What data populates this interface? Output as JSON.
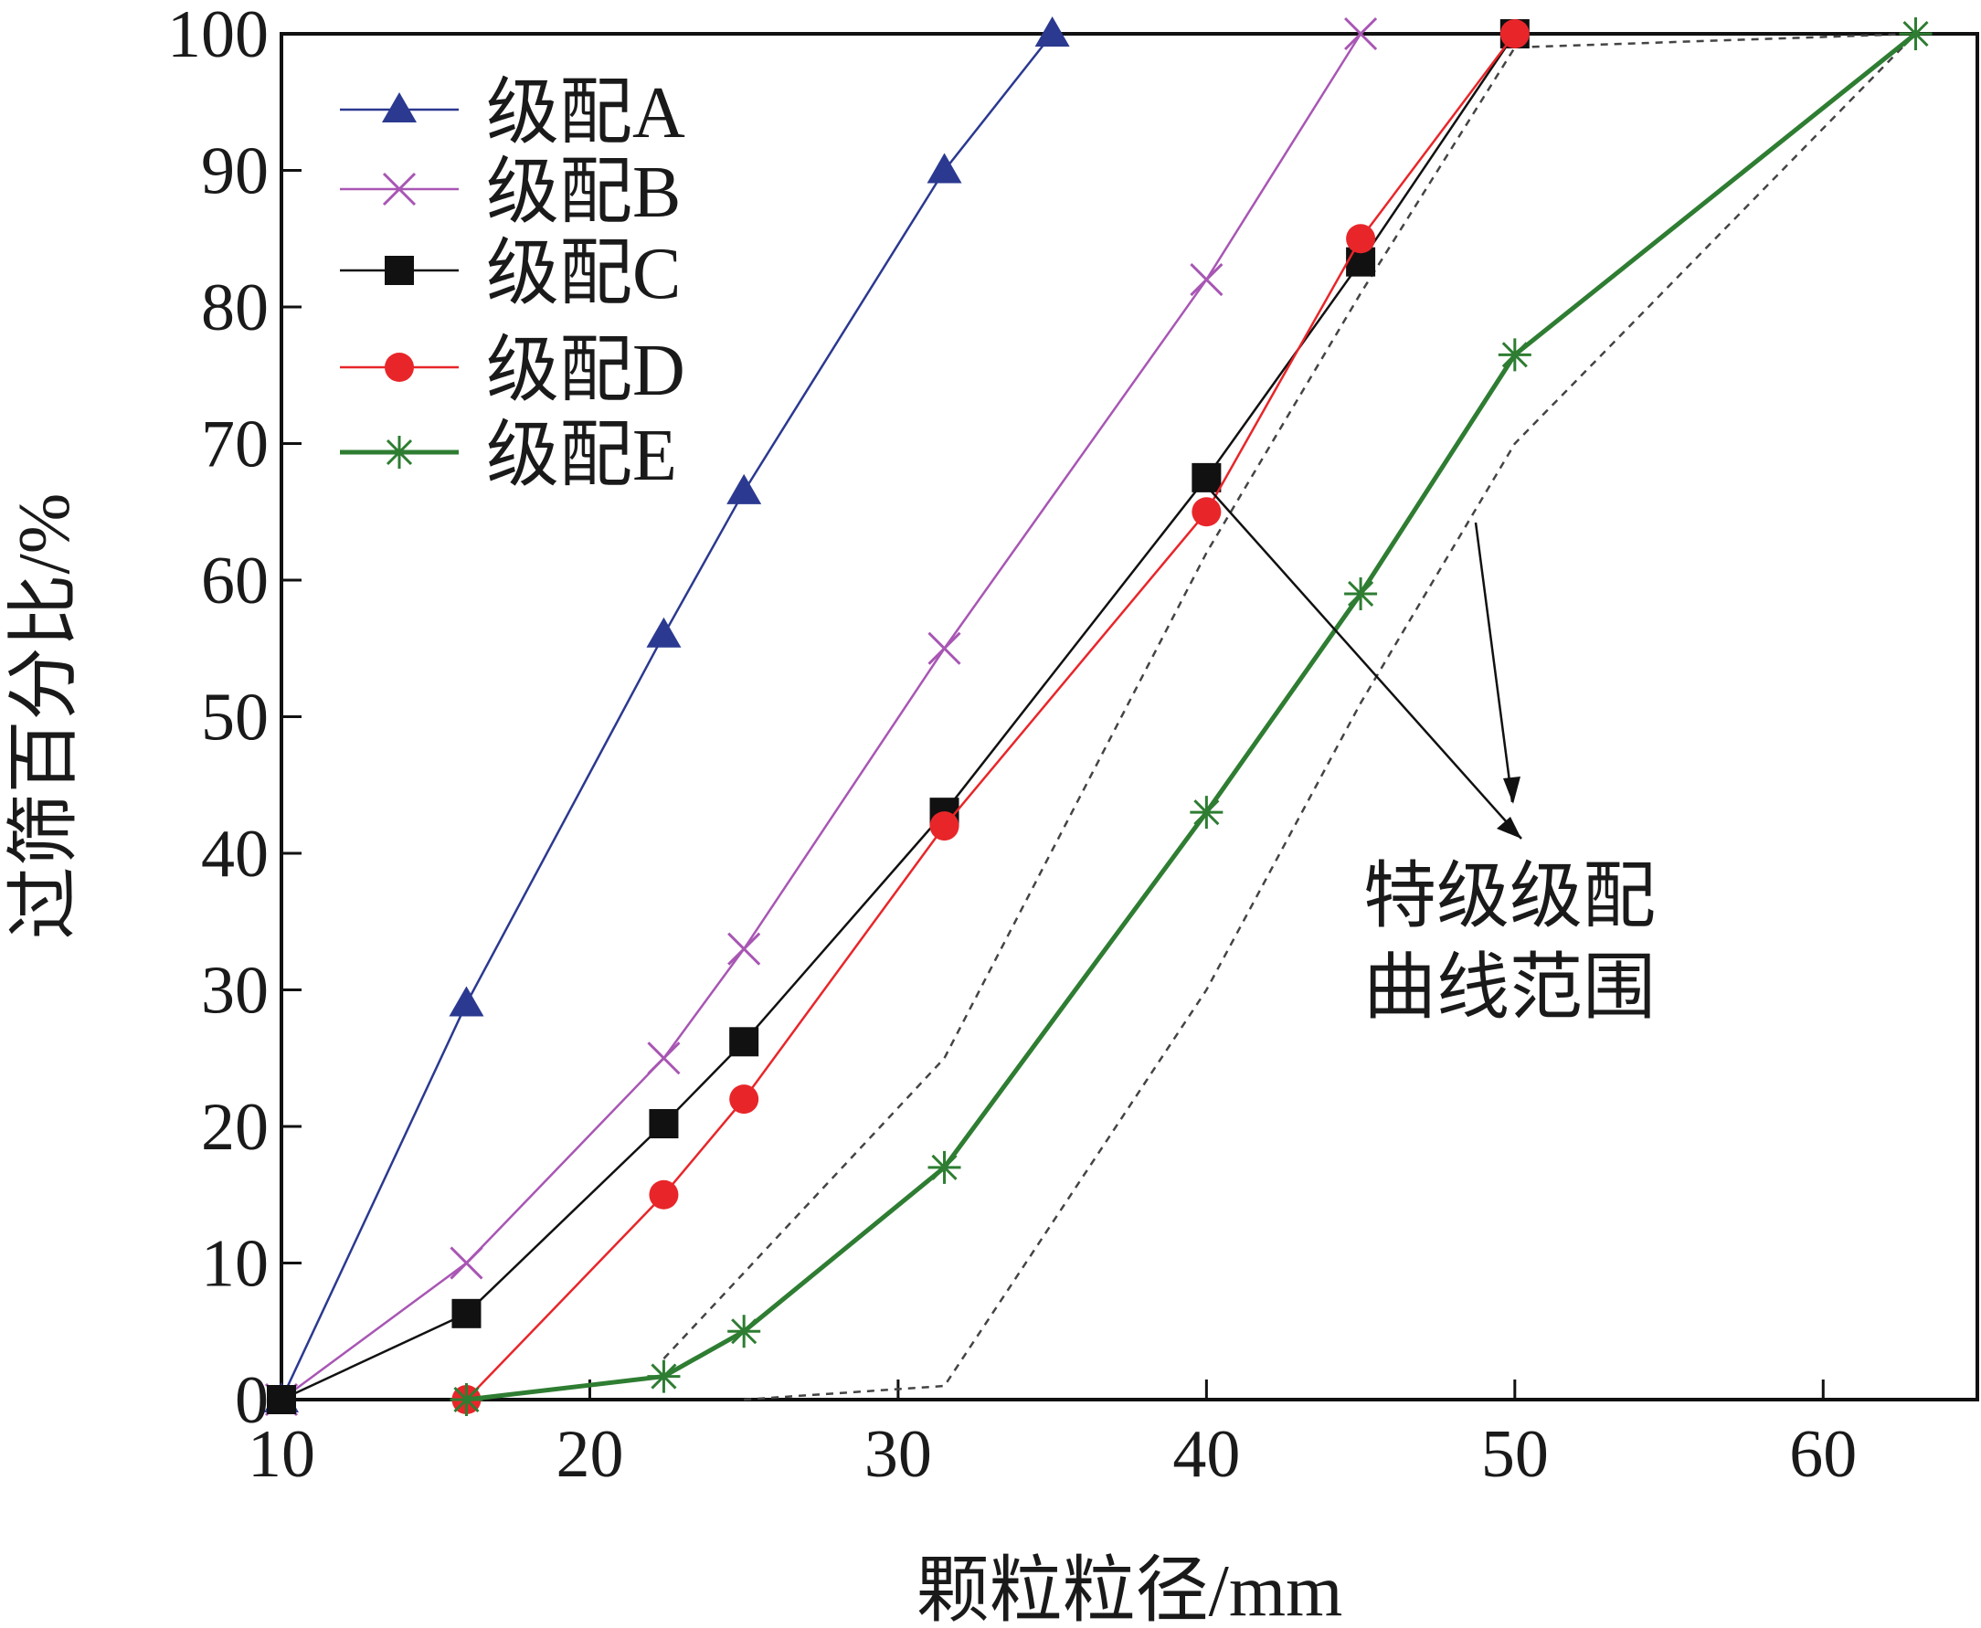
{
  "chart_data": {
    "type": "line",
    "xlabel": "颗粒粒径/mm",
    "ylabel": "过筛百分比/%",
    "xlim": [
      10,
      65
    ],
    "ylim": [
      0,
      100
    ],
    "xticks": [
      10,
      20,
      30,
      40,
      50,
      60
    ],
    "yticks": [
      0,
      10,
      20,
      30,
      40,
      50,
      60,
      70,
      80,
      90,
      100
    ],
    "grid": false,
    "legend_position": "top-left",
    "series": [
      {
        "name": "级配A",
        "color": "#2b3990",
        "marker": "triangle",
        "x": [
          10,
          16,
          22.4,
          25,
          31.5,
          35
        ],
        "y": [
          0,
          29,
          56,
          66.5,
          90,
          100
        ]
      },
      {
        "name": "级配B",
        "color": "#a856b4",
        "marker": "cross",
        "x": [
          10,
          16,
          22.4,
          25,
          31.5,
          40,
          45
        ],
        "y": [
          0,
          10,
          25,
          33,
          55,
          82,
          100
        ]
      },
      {
        "name": "级配C",
        "color": "#111111",
        "marker": "square",
        "x": [
          10,
          16,
          22.4,
          25,
          31.5,
          40,
          45,
          50
        ],
        "y": [
          0,
          6.3,
          20.2,
          26.2,
          43,
          67.5,
          83.3,
          100
        ]
      },
      {
        "name": "级配D",
        "color": "#e8262a",
        "marker": "circle",
        "x": [
          16,
          22.4,
          25,
          31.5,
          40,
          45,
          50
        ],
        "y": [
          0,
          15,
          22,
          42,
          65,
          85,
          100
        ]
      },
      {
        "name": "级配E",
        "color": "#2e7d32",
        "marker": "asterisk",
        "x": [
          16,
          22.4,
          25,
          31.5,
          40,
          45,
          50,
          63
        ],
        "y": [
          0,
          1.7,
          5,
          17,
          43,
          59,
          76.5,
          100
        ]
      }
    ],
    "envelope": [
      {
        "style": "dashed",
        "color": "#444444",
        "x": [
          22.4,
          31.5,
          40,
          45,
          50,
          63
        ],
        "y": [
          3,
          25,
          62,
          81,
          99,
          100
        ]
      },
      {
        "style": "dashed",
        "color": "#444444",
        "x": [
          25,
          31.5,
          40,
          45,
          50,
          63
        ],
        "y": [
          0,
          1,
          30,
          51,
          70,
          100
        ]
      }
    ],
    "annotation": {
      "lines": [
        "特级级配",
        "曲线范围"
      ]
    }
  }
}
